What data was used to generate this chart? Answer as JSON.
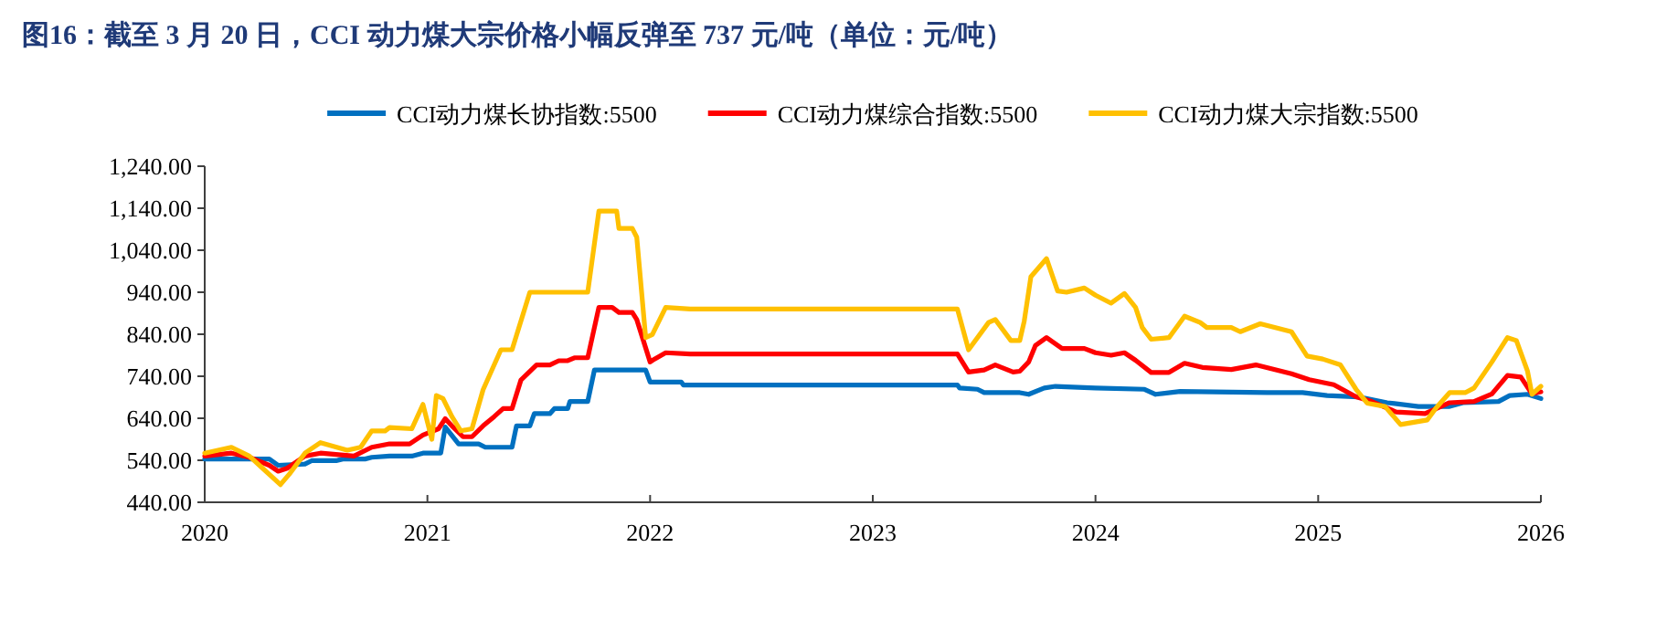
{
  "chart_data": {
    "type": "line",
    "title": "图16：截至 3 月 20 日，CCI 动力煤大宗价格小幅反弹至 737 元/吨（单位：元/吨）",
    "legend": "top",
    "marker": "none",
    "line_style": "solid",
    "xlim": [
      2020,
      2026
    ],
    "xticks": [
      2020,
      2021,
      2022,
      2023,
      2024,
      2025,
      2026
    ],
    "ylim": [
      440,
      1240
    ],
    "yticks": [
      {
        "value": 440,
        "label": "440.00"
      },
      {
        "value": 540,
        "label": "540.00"
      },
      {
        "value": 640,
        "label": "640.00"
      },
      {
        "value": 740,
        "label": "740.00"
      },
      {
        "value": 840,
        "label": "840.00"
      },
      {
        "value": 940,
        "label": "940.00"
      },
      {
        "value": 1040,
        "label": "1,040.00"
      },
      {
        "value": 1140,
        "label": "1,140.00"
      },
      {
        "value": 1240,
        "label": "1,240.00"
      }
    ],
    "series": [
      {
        "name": "CCI动力煤长协指数:5500",
        "color": "#0070c0",
        "x": [
          2020.0,
          2020.29,
          2020.33,
          2020.45,
          2020.48,
          2020.59,
          2020.62,
          2020.72,
          2020.75,
          2020.83,
          2020.93,
          2020.98,
          2021.06,
          2021.08,
          2021.14,
          2021.23,
          2021.26,
          2021.38,
          2021.4,
          2021.46,
          2021.48,
          2021.55,
          2021.57,
          2021.63,
          2021.64,
          2021.72,
          2021.75,
          2021.98,
          2022.0,
          2022.14,
          2022.15,
          2023.38,
          2023.39,
          2023.47,
          2023.5,
          2023.6,
          2023.66,
          2023.7,
          2023.77,
          2023.82,
          2024.0,
          2024.22,
          2024.27,
          2024.38,
          2024.77,
          2024.93,
          2025.04,
          2025.18,
          2025.31,
          2025.45,
          2025.59,
          2025.65,
          2025.81,
          2025.86,
          2025.94,
          2026.0
        ],
        "values": [
          543,
          543,
          528,
          531,
          539,
          539,
          543,
          543,
          547,
          550,
          550,
          557,
          557,
          619,
          579,
          579,
          571,
          571,
          622,
          622,
          651,
          651,
          663,
          663,
          680,
          680,
          755,
          755,
          726,
          726,
          719,
          719,
          712,
          709,
          701,
          701,
          701,
          697,
          712,
          716,
          712,
          709,
          697,
          704,
          701,
          701,
          694,
          691,
          677,
          668,
          668,
          677,
          680,
          694,
          697,
          687
        ]
      },
      {
        "name": "CCI动力煤综合指数:5500",
        "color": "#ff0000",
        "x": [
          2020.0,
          2020.12,
          2020.2,
          2020.29,
          2020.33,
          2020.37,
          2020.45,
          2020.52,
          2020.67,
          2020.75,
          2020.83,
          2020.92,
          2020.98,
          2021.05,
          2021.08,
          2021.11,
          2021.16,
          2021.2,
          2021.25,
          2021.3,
          2021.34,
          2021.38,
          2021.42,
          2021.49,
          2021.55,
          2021.59,
          2021.63,
          2021.66,
          2021.72,
          2021.77,
          2021.83,
          2021.86,
          2021.92,
          2021.94,
          2022.0,
          2022.02,
          2022.07,
          2022.18,
          2023.38,
          2023.43,
          2023.5,
          2023.55,
          2023.63,
          2023.66,
          2023.7,
          2023.73,
          2023.78,
          2023.85,
          2023.95,
          2024.0,
          2024.07,
          2024.13,
          2024.18,
          2024.25,
          2024.33,
          2024.4,
          2024.48,
          2024.61,
          2024.72,
          2024.88,
          2024.96,
          2025.07,
          2025.17,
          2025.24,
          2025.35,
          2025.48,
          2025.59,
          2025.7,
          2025.78,
          2025.85,
          2025.91,
          2025.96,
          2026.0
        ],
        "values": [
          550,
          557,
          547,
          528,
          514,
          521,
          550,
          557,
          550,
          571,
          579,
          579,
          600,
          615,
          639,
          622,
          596,
          596,
          622,
          644,
          663,
          663,
          731,
          767,
          767,
          777,
          777,
          784,
          784,
          904,
          904,
          892,
          892,
          875,
          774,
          781,
          796,
          793,
          793,
          750,
          755,
          767,
          750,
          752,
          774,
          813,
          832,
          806,
          806,
          796,
          790,
          796,
          778,
          749,
          749,
          771,
          761,
          756,
          767,
          746,
          732,
          720,
          691,
          680,
          655,
          651,
          677,
          680,
          698,
          742,
          738,
          698,
          703
        ]
      },
      {
        "name": "CCI动力煤大宗指数:5500",
        "color": "#ffc000",
        "x": [
          2020.0,
          2020.12,
          2020.2,
          2020.26,
          2020.34,
          2020.38,
          2020.45,
          2020.52,
          2020.64,
          2020.7,
          2020.75,
          2020.81,
          2020.83,
          2020.93,
          2020.98,
          2021.02,
          2021.04,
          2021.07,
          2021.11,
          2021.15,
          2021.2,
          2021.25,
          2021.33,
          2021.38,
          2021.46,
          2021.72,
          2021.77,
          2021.85,
          2021.86,
          2021.92,
          2021.94,
          2021.98,
          2022.01,
          2022.07,
          2022.18,
          2023.38,
          2023.43,
          2023.52,
          2023.55,
          2023.62,
          2023.66,
          2023.68,
          2023.71,
          2023.78,
          2023.83,
          2023.87,
          2023.95,
          2024.0,
          2024.07,
          2024.13,
          2024.18,
          2024.21,
          2024.25,
          2024.33,
          2024.4,
          2024.47,
          2024.5,
          2024.61,
          2024.65,
          2024.74,
          2024.88,
          2024.95,
          2025.02,
          2025.1,
          2025.17,
          2025.22,
          2025.3,
          2025.37,
          2025.49,
          2025.53,
          2025.59,
          2025.66,
          2025.7,
          2025.78,
          2025.85,
          2025.89,
          2025.94,
          2025.96,
          2026.0
        ],
        "values": [
          557,
          571,
          550,
          521,
          482,
          507,
          557,
          582,
          564,
          571,
          610,
          610,
          618,
          615,
          673,
          590,
          694,
          687,
          644,
          610,
          615,
          708,
          803,
          803,
          940,
          940,
          1133,
          1133,
          1092,
          1092,
          1071,
          832,
          839,
          904,
          900,
          900,
          803,
          868,
          875,
          825,
          825,
          871,
          977,
          1020,
          943,
          940,
          950,
          933,
          914,
          937,
          904,
          856,
          828,
          832,
          883,
          868,
          856,
          856,
          846,
          865,
          846,
          788,
          781,
          767,
          709,
          676,
          668,
          625,
          636,
          665,
          701,
          701,
          712,
          774,
          832,
          825,
          752,
          697,
          716
        ]
      }
    ]
  }
}
